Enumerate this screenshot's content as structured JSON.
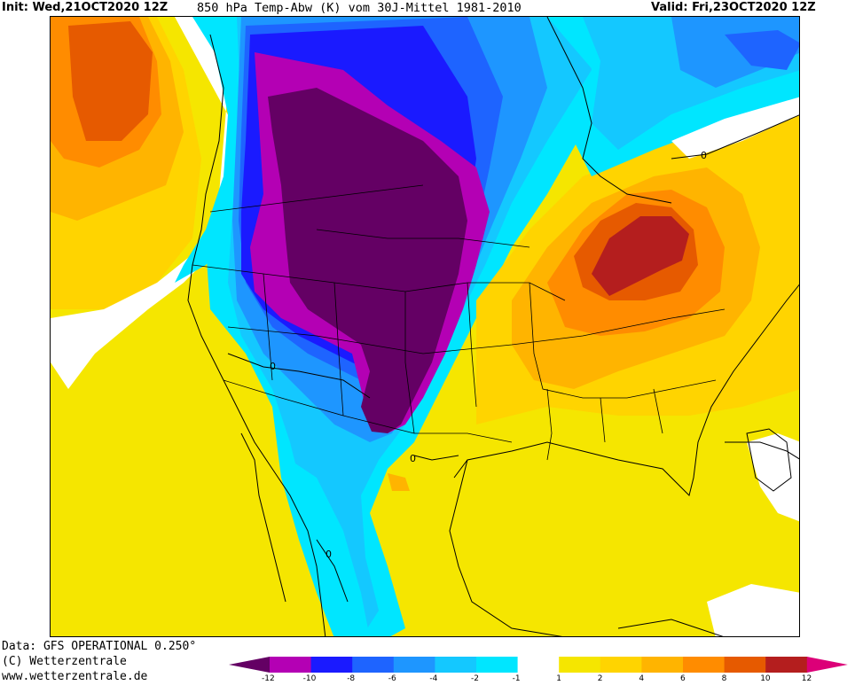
{
  "header": {
    "init": "Init: Wed,21OCT2020 12Z",
    "title": "850 hPa Temp-Abw (K) vom 30J-Mittel 1981-2010",
    "valid": "Valid: Fri,23OCT2020 12Z"
  },
  "credits": {
    "data": "Data: GFS OPERATIONAL 0.250°",
    "copyright": "(C) Wetterzentrale",
    "website": "www.wetterzentrale.de"
  },
  "colorbar": {
    "ticks": [
      "-12",
      "-10",
      "-8",
      "-6",
      "-4",
      "-2",
      "-1",
      "1",
      "2",
      "4",
      "6",
      "8",
      "10",
      "12"
    ],
    "colors": [
      "#b400b4",
      "#1a1aff",
      "#1e64ff",
      "#1e96ff",
      "#14c8ff",
      "#00e6ff",
      "#ffffff",
      "#f5e600",
      "#ffd400",
      "#ffb400",
      "#ff8c00",
      "#e65a00",
      "#b41e1e"
    ],
    "low_end_color": "#640064",
    "high_end_color": "#dc0078"
  },
  "map": {
    "contour_label": "0",
    "colors": {
      "deep_purple": "#640064",
      "magenta": "#b400b4",
      "blue": "#1a1aff",
      "mid_blue": "#1e64ff",
      "sky_blue": "#1e96ff",
      "light_blue": "#14c8ff",
      "cyan": "#00e6ff",
      "white": "#ffffff",
      "yellow": "#f5e600",
      "gold": "#ffd400",
      "light_orange": "#ffb400",
      "orange": "#ff8c00",
      "dark_orange": "#e65a00",
      "red": "#b41e1e"
    }
  }
}
